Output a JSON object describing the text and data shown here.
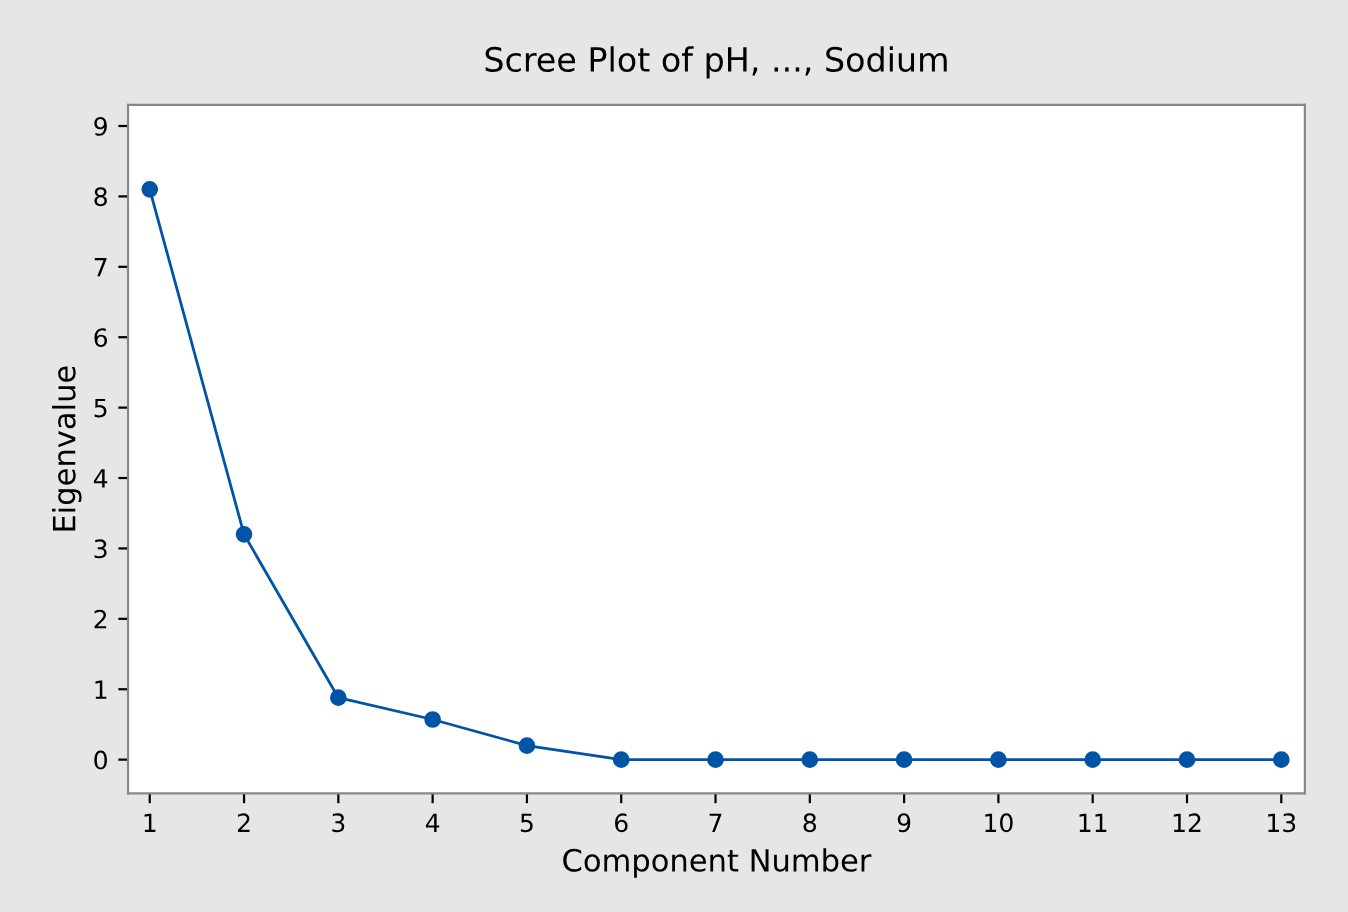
{
  "chart_data": {
    "type": "line",
    "title": "Scree Plot of pH, ..., Sodium",
    "xlabel": "Component Number",
    "ylabel": "Eigenvalue",
    "x": [
      1,
      2,
      3,
      4,
      5,
      6,
      7,
      8,
      9,
      10,
      11,
      12,
      13
    ],
    "series": [
      {
        "color": "#0054a6",
        "values": [
          8.1,
          3.2,
          0.88,
          0.57,
          0.2,
          0,
          0,
          0,
          0,
          0,
          0,
          0,
          0
        ]
      }
    ],
    "xlim": [
      0.77,
      13.25
    ],
    "ylim": [
      -0.48,
      9.3
    ],
    "xticks": [
      1,
      2,
      3,
      4,
      5,
      6,
      7,
      8,
      9,
      10,
      11,
      12,
      13
    ],
    "yticks": [
      0,
      1,
      2,
      3,
      4,
      5,
      6,
      7,
      8,
      9
    ],
    "marker": "circle",
    "line_style": "solid",
    "grid": false,
    "legend": false
  }
}
